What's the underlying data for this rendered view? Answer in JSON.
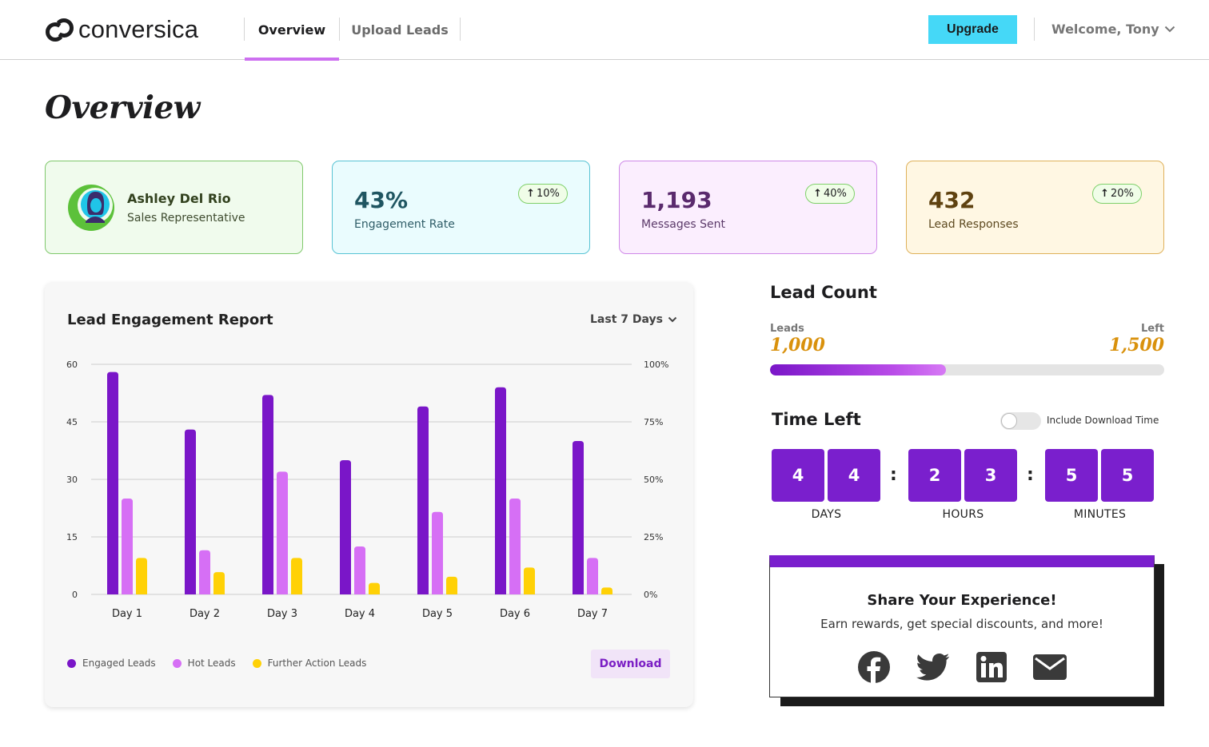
{
  "brand": {
    "name": "conversica"
  },
  "nav": {
    "tabs": [
      {
        "label": "Overview",
        "active": true
      },
      {
        "label": "Upload Leads",
        "active": false
      }
    ],
    "upgrade_label": "Upgrade",
    "welcome_text": "Welcome, Tony"
  },
  "page": {
    "title": "Overview"
  },
  "profile": {
    "name": "Ashley Del Rio",
    "role": "Sales Representative"
  },
  "stats": [
    {
      "value": "43%",
      "label": "Engagement Rate",
      "delta": "10%"
    },
    {
      "value": "1,193",
      "label": "Messages Sent",
      "delta": "40%"
    },
    {
      "value": "432",
      "label": "Lead Responses",
      "delta": "20%"
    }
  ],
  "report": {
    "title": "Lead Engagement Report",
    "range": "Last 7 Days",
    "download_label": "Download"
  },
  "chart_data": {
    "type": "bar",
    "title": "Lead Engagement Report",
    "categories": [
      "Day 1",
      "Day 2",
      "Day 3",
      "Day 4",
      "Day 5",
      "Day 6",
      "Day 7"
    ],
    "series": [
      {
        "name": "Engaged Leads",
        "color": "#7a16c8",
        "values": [
          58,
          43,
          52,
          35,
          49,
          54,
          40
        ]
      },
      {
        "name": "Hot Leads",
        "color": "#d66ff5",
        "values": [
          25,
          11.5,
          32,
          12.5,
          21.5,
          25,
          9.5
        ]
      },
      {
        "name": "Further Action Leads",
        "color": "#ffd106",
        "values": [
          9.5,
          5.8,
          9.5,
          3,
          4.6,
          7,
          1.8
        ]
      }
    ],
    "y_left": {
      "ticks": [
        "0",
        "15",
        "30",
        "45",
        "60"
      ],
      "min": 0,
      "max": 60
    },
    "y_right": {
      "ticks": [
        "0%",
        "25%",
        "50%",
        "75%",
        "100%"
      ]
    },
    "grid": true,
    "legend_position": "bottom-left"
  },
  "lead_count": {
    "title": "Lead Count",
    "leads_label": "Leads",
    "leads_value": "1,000",
    "left_label": "Left",
    "left_value": "1,500",
    "progress_fraction": 0.446
  },
  "time_left": {
    "title": "Time Left",
    "toggle_label": "Include Download Time",
    "toggle_on": false,
    "days_digits": [
      "4",
      "4"
    ],
    "hours_digits": [
      "2",
      "3"
    ],
    "minutes_digits": [
      "5",
      "5"
    ],
    "separator": ":",
    "days_label": "DAYS",
    "hours_label": "HOURS",
    "minutes_label": "MINUTES"
  },
  "share": {
    "title": "Share Your Experience!",
    "subtitle": "Earn rewards, get special discounts, and more!",
    "icons": [
      "facebook-icon",
      "twitter-icon",
      "linkedin-icon",
      "mail-icon"
    ]
  },
  "colors": {
    "accent_purple": "#7a1fcd",
    "upgrade_cyan": "#45d8f7",
    "nav_underline": "#cd70f0",
    "counter_gold": "#d9910c"
  }
}
